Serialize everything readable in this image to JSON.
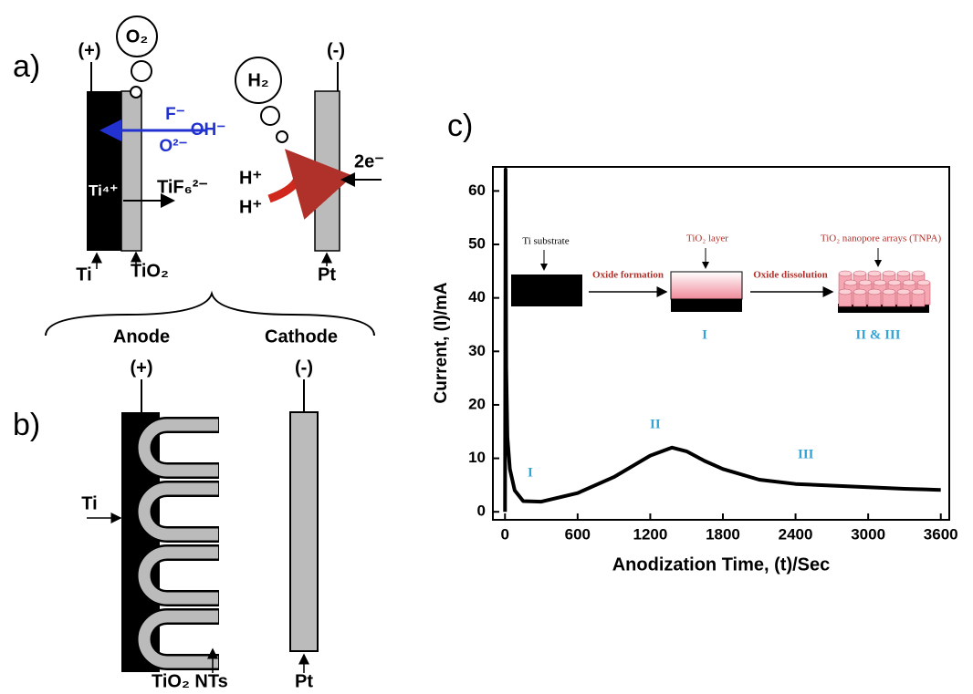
{
  "panel_labels": [
    "a)",
    "b)",
    "c)"
  ],
  "panel_a": {
    "anode_terminal": "(+)",
    "cathode_terminal": "(-)",
    "anode_gas": "O₂",
    "cathode_gas": "H₂",
    "ions_in": [
      "F⁻",
      "OH⁻",
      "O²⁻"
    ],
    "ti_ion": "Ti⁴⁺",
    "complex": "TiF₆²⁻",
    "protons": [
      "H⁺",
      "H⁺"
    ],
    "electrons": "2e⁻",
    "metal": "Ti",
    "oxide": "TiO₂",
    "counter": "Pt",
    "anode": "Anode",
    "cathode": "Cathode"
  },
  "panel_b": {
    "anode_terminal": "(+)",
    "cathode_terminal": "(-)",
    "metal": "Ti",
    "nanotubes": "TiO₂ NTs",
    "counter": "Pt"
  },
  "chart_data": {
    "type": "line",
    "xlabel": "Anodization Time, (t)/Sec",
    "ylabel": "Current, (I)/mA",
    "x": [
      0,
      5,
      10,
      20,
      40,
      80,
      150,
      300,
      600,
      900,
      1200,
      1380,
      1500,
      1650,
      1800,
      2100,
      2400,
      2700,
      3000,
      3300,
      3600
    ],
    "values": [
      0,
      64,
      27,
      14,
      8,
      4,
      2,
      1.9,
      3.5,
      6.5,
      10.5,
      12,
      11.3,
      9.5,
      8,
      6,
      5.2,
      4.9,
      4.6,
      4.3,
      4.1
    ],
    "color": "#000000",
    "xlim": [
      -100,
      3670
    ],
    "ylim": [
      -1.5,
      64.5
    ],
    "xticks": [
      0,
      600,
      1200,
      1800,
      2400,
      3000,
      3600
    ],
    "yticks": [
      0,
      10,
      20,
      30,
      40,
      50,
      60
    ],
    "annotations": [
      "I",
      "II",
      "III"
    ],
    "inset": [
      "Ti substrate",
      "Oxide formation",
      "TiO₂ layer",
      "Oxide dissolution",
      "TiO₂ nanopore arrays (TNPA)",
      "I",
      "II & III"
    ]
  }
}
